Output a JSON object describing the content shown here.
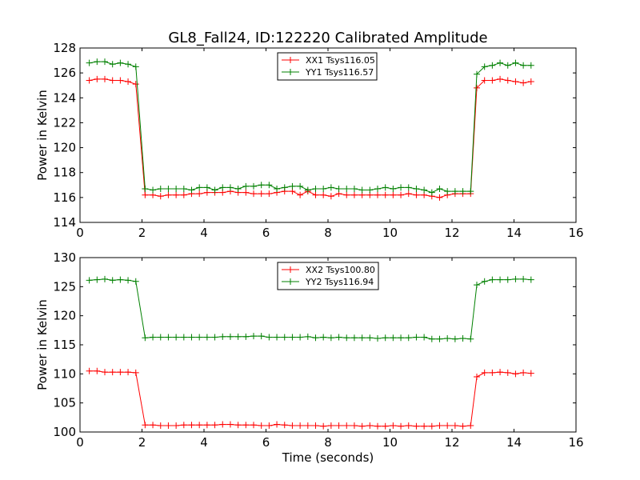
{
  "figure": {
    "title": "GL8_Fall24, ID:122220 Calibrated Amplitude",
    "xlabel": "Time (seconds)"
  },
  "chart_data": [
    {
      "type": "line",
      "title": "GL8_Fall24, ID:122220 Calibrated Amplitude",
      "xlabel": "",
      "ylabel": "Power in Kelvin",
      "xlim": [
        0,
        16
      ],
      "ylim": [
        114,
        128
      ],
      "xticks": [
        "0",
        "2",
        "4",
        "6",
        "8",
        "10",
        "12",
        "14",
        "16"
      ],
      "yticks": [
        "114",
        "116",
        "118",
        "120",
        "122",
        "124",
        "126",
        "128"
      ],
      "grid": false,
      "legend_position": "top-center",
      "x": [
        0.3,
        0.55,
        0.8,
        1.05,
        1.3,
        1.55,
        1.8,
        2.1,
        2.35,
        2.6,
        2.85,
        3.1,
        3.35,
        3.6,
        3.85,
        4.1,
        4.35,
        4.6,
        4.85,
        5.1,
        5.35,
        5.6,
        5.85,
        6.1,
        6.35,
        6.6,
        6.85,
        7.1,
        7.35,
        7.6,
        7.85,
        8.1,
        8.35,
        8.6,
        8.85,
        9.1,
        9.35,
        9.6,
        9.85,
        10.1,
        10.35,
        10.6,
        10.85,
        11.1,
        11.35,
        11.6,
        11.85,
        12.1,
        12.35,
        12.6,
        12.8,
        13.05,
        13.3,
        13.55,
        13.8,
        14.05,
        14.3,
        14.55
      ],
      "series": [
        {
          "name": "XX1 Tsys116.05",
          "color": "#ff0000",
          "values": [
            125.4,
            125.5,
            125.5,
            125.4,
            125.4,
            125.3,
            125.1,
            116.2,
            116.2,
            116.1,
            116.2,
            116.2,
            116.2,
            116.3,
            116.3,
            116.4,
            116.4,
            116.4,
            116.5,
            116.4,
            116.4,
            116.3,
            116.3,
            116.3,
            116.4,
            116.5,
            116.5,
            116.2,
            116.5,
            116.2,
            116.2,
            116.1,
            116.3,
            116.2,
            116.2,
            116.2,
            116.2,
            116.2,
            116.2,
            116.2,
            116.2,
            116.3,
            116.2,
            116.2,
            116.1,
            116.0,
            116.2,
            116.3,
            116.3,
            116.3,
            124.8,
            125.4,
            125.4,
            125.5,
            125.4,
            125.3,
            125.2,
            125.3
          ]
        },
        {
          "name": "YY1 Tsys116.57",
          "color": "#008000",
          "values": [
            126.8,
            126.9,
            126.9,
            126.7,
            126.8,
            126.7,
            126.5,
            116.7,
            116.6,
            116.7,
            116.7,
            116.7,
            116.7,
            116.6,
            116.8,
            116.8,
            116.6,
            116.8,
            116.8,
            116.7,
            116.9,
            116.9,
            117.0,
            117.0,
            116.7,
            116.8,
            116.9,
            116.9,
            116.6,
            116.7,
            116.7,
            116.8,
            116.7,
            116.7,
            116.7,
            116.6,
            116.6,
            116.7,
            116.8,
            116.7,
            116.8,
            116.8,
            116.7,
            116.6,
            116.4,
            116.7,
            116.5,
            116.5,
            116.5,
            116.5,
            125.9,
            126.5,
            126.6,
            126.8,
            126.6,
            126.8,
            126.6,
            126.6
          ]
        }
      ]
    },
    {
      "type": "line",
      "title": "",
      "xlabel": "Time (seconds)",
      "ylabel": "Power in Kelvin",
      "xlim": [
        0,
        16
      ],
      "ylim": [
        100,
        130
      ],
      "xticks": [
        "0",
        "2",
        "4",
        "6",
        "8",
        "10",
        "12",
        "14",
        "16"
      ],
      "yticks": [
        "100",
        "105",
        "110",
        "115",
        "120",
        "125",
        "130"
      ],
      "grid": false,
      "legend_position": "top-center",
      "x": [
        0.3,
        0.55,
        0.8,
        1.05,
        1.3,
        1.55,
        1.8,
        2.1,
        2.35,
        2.6,
        2.85,
        3.1,
        3.35,
        3.6,
        3.85,
        4.1,
        4.35,
        4.6,
        4.85,
        5.1,
        5.35,
        5.6,
        5.85,
        6.1,
        6.35,
        6.6,
        6.85,
        7.1,
        7.35,
        7.6,
        7.85,
        8.1,
        8.35,
        8.6,
        8.85,
        9.1,
        9.35,
        9.6,
        9.85,
        10.1,
        10.35,
        10.6,
        10.85,
        11.1,
        11.35,
        11.6,
        11.85,
        12.1,
        12.35,
        12.6,
        12.8,
        13.05,
        13.3,
        13.55,
        13.8,
        14.05,
        14.3,
        14.55
      ],
      "series": [
        {
          "name": "XX2 Tsys100.80",
          "color": "#ff0000",
          "values": [
            110.5,
            110.5,
            110.3,
            110.3,
            110.3,
            110.3,
            110.2,
            101.2,
            101.2,
            101.1,
            101.1,
            101.1,
            101.2,
            101.2,
            101.2,
            101.2,
            101.2,
            101.3,
            101.3,
            101.2,
            101.2,
            101.2,
            101.1,
            101.1,
            101.3,
            101.2,
            101.1,
            101.1,
            101.1,
            101.1,
            101.0,
            101.1,
            101.1,
            101.1,
            101.1,
            101.0,
            101.1,
            101.0,
            101.0,
            101.1,
            101.0,
            101.1,
            101.0,
            101.0,
            101.0,
            101.1,
            101.1,
            101.1,
            101.0,
            101.1,
            109.5,
            110.2,
            110.2,
            110.3,
            110.2,
            110.0,
            110.2,
            110.1
          ]
        },
        {
          "name": "YY2 Tsys116.94",
          "color": "#008000",
          "values": [
            126.1,
            126.2,
            126.3,
            126.1,
            126.2,
            126.1,
            125.9,
            116.2,
            116.3,
            116.3,
            116.3,
            116.3,
            116.3,
            116.3,
            116.3,
            116.3,
            116.3,
            116.4,
            116.4,
            116.4,
            116.4,
            116.5,
            116.5,
            116.3,
            116.3,
            116.3,
            116.3,
            116.3,
            116.4,
            116.2,
            116.3,
            116.2,
            116.3,
            116.2,
            116.2,
            116.2,
            116.2,
            116.1,
            116.2,
            116.2,
            116.2,
            116.2,
            116.3,
            116.3,
            116.0,
            116.0,
            116.1,
            116.0,
            116.1,
            116.0,
            125.3,
            125.9,
            126.2,
            126.2,
            126.2,
            126.3,
            126.3,
            126.2
          ]
        }
      ]
    }
  ]
}
